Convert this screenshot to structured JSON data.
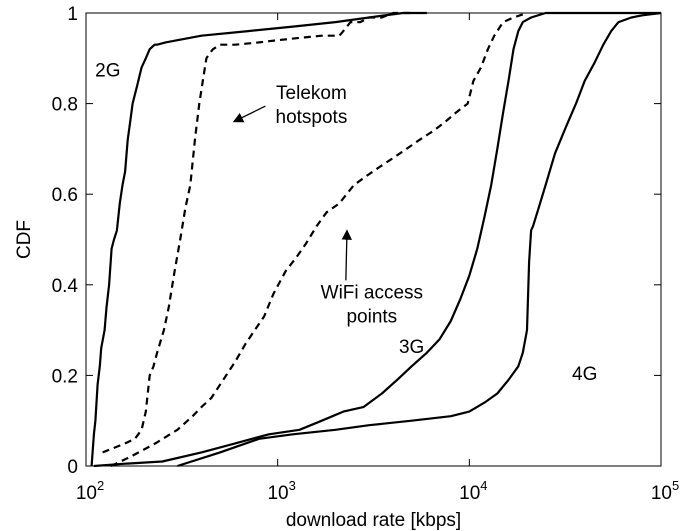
{
  "chart_data": {
    "type": "line",
    "xscale": "log",
    "xlabel": "download rate [kbps]",
    "ylabel": "CDF",
    "xlim": [
      100,
      100000
    ],
    "ylim": [
      0,
      1
    ],
    "x_ticks": [
      {
        "value": 100,
        "base": "10",
        "exp": "2"
      },
      {
        "value": 1000,
        "base": "10",
        "exp": "3"
      },
      {
        "value": 10000,
        "base": "10",
        "exp": "4"
      },
      {
        "value": 100000,
        "base": "10",
        "exp": "5"
      }
    ],
    "y_ticks": [
      {
        "value": 0,
        "label": "0"
      },
      {
        "value": 0.2,
        "label": "0.2"
      },
      {
        "value": 0.4,
        "label": "0.4"
      },
      {
        "value": 0.6,
        "label": "0.6"
      },
      {
        "value": 0.8,
        "label": "0.8"
      },
      {
        "value": 1,
        "label": "1"
      }
    ],
    "grid": false,
    "series": [
      {
        "name": "2G",
        "style": "solid",
        "x": [
          107,
          110,
          112,
          115,
          118,
          120,
          125,
          128,
          132,
          136,
          140,
          145,
          150,
          155,
          160,
          165,
          170,
          175,
          180,
          185,
          190,
          195,
          205,
          215,
          228,
          235,
          260,
          400,
          700,
          1200,
          2000,
          3000,
          4500,
          6000
        ],
        "y": [
          0,
          0.07,
          0.1,
          0.18,
          0.22,
          0.26,
          0.3,
          0.35,
          0.4,
          0.48,
          0.5,
          0.52,
          0.58,
          0.62,
          0.65,
          0.72,
          0.76,
          0.8,
          0.82,
          0.84,
          0.86,
          0.88,
          0.9,
          0.92,
          0.93,
          0.93,
          0.935,
          0.95,
          0.96,
          0.97,
          0.98,
          0.99,
          1,
          1
        ]
      },
      {
        "name": "Telekom hotspots",
        "style": "dashed",
        "x": [
          122,
          140,
          160,
          180,
          195,
          205,
          215,
          225,
          235,
          255,
          270,
          290,
          310,
          330,
          350,
          370,
          390,
          410,
          425,
          440,
          460,
          500,
          600,
          800,
          1000,
          1300,
          1700,
          2100,
          2200,
          2400,
          2700,
          3000,
          3500,
          4000,
          4500,
          5000
        ],
        "y": [
          0.03,
          0.04,
          0.05,
          0.06,
          0.08,
          0.12,
          0.2,
          0.22,
          0.25,
          0.3,
          0.35,
          0.43,
          0.5,
          0.57,
          0.62,
          0.72,
          0.8,
          0.86,
          0.9,
          0.91,
          0.92,
          0.93,
          0.93,
          0.935,
          0.94,
          0.945,
          0.95,
          0.95,
          0.96,
          0.98,
          0.98,
          0.99,
          0.99,
          1,
          1,
          1
        ]
      },
      {
        "name": "WiFi access points",
        "style": "dashed",
        "x": [
          135,
          170,
          230,
          300,
          360,
          400,
          450,
          520,
          600,
          680,
          760,
          850,
          950,
          1100,
          1250,
          1400,
          1600,
          1800,
          2100,
          2500,
          2900,
          3400,
          4000,
          4700,
          5500,
          6500,
          7500,
          8500,
          9800,
          10500,
          11500,
          12500,
          13500,
          15000,
          17000,
          20000
        ],
        "y": [
          0,
          0.02,
          0.05,
          0.08,
          0.11,
          0.13,
          0.15,
          0.19,
          0.23,
          0.27,
          0.3,
          0.33,
          0.38,
          0.43,
          0.46,
          0.49,
          0.53,
          0.56,
          0.58,
          0.62,
          0.64,
          0.66,
          0.68,
          0.7,
          0.72,
          0.74,
          0.76,
          0.78,
          0.8,
          0.85,
          0.88,
          0.92,
          0.95,
          0.98,
          0.99,
          1
        ]
      },
      {
        "name": "3G",
        "style": "solid",
        "x": [
          110,
          160,
          250,
          400,
          600,
          900,
          1300,
          1700,
          2200,
          2800,
          3500,
          4200,
          5000,
          6000,
          7000,
          8000,
          9000,
          10000,
          11000,
          12000,
          13000,
          14000,
          15000,
          16000,
          17000,
          18000,
          19000,
          21000,
          25000,
          40000,
          100000
        ],
        "y": [
          0,
          0.005,
          0.01,
          0.03,
          0.05,
          0.07,
          0.08,
          0.1,
          0.12,
          0.13,
          0.16,
          0.19,
          0.22,
          0.25,
          0.28,
          0.32,
          0.37,
          0.42,
          0.48,
          0.55,
          0.62,
          0.7,
          0.78,
          0.85,
          0.92,
          0.96,
          0.98,
          0.99,
          1,
          1,
          1
        ]
      },
      {
        "name": "4G",
        "style": "solid",
        "x": [
          300,
          500,
          800,
          1200,
          2000,
          3000,
          5000,
          8000,
          10000,
          12000,
          14000,
          16000,
          18000,
          19000,
          20000,
          20500,
          21000,
          21500,
          23000,
          25000,
          28000,
          32000,
          36000,
          40000,
          45000,
          50000,
          55000,
          60000,
          70000,
          80000,
          100000
        ],
        "y": [
          0,
          0.03,
          0.06,
          0.07,
          0.08,
          0.09,
          0.1,
          0.11,
          0.12,
          0.14,
          0.16,
          0.19,
          0.22,
          0.25,
          0.3,
          0.45,
          0.52,
          0.53,
          0.57,
          0.62,
          0.69,
          0.75,
          0.8,
          0.85,
          0.89,
          0.93,
          0.96,
          0.98,
          0.99,
          0.995,
          1
        ]
      }
    ],
    "annotations": [
      {
        "text": "2G",
        "lines": [
          "2G"
        ],
        "x": 130,
        "y": 0.86
      },
      {
        "text": "Telekom hotspots",
        "lines": [
          "Telekom",
          "hotspots"
        ],
        "x": 1500,
        "y": 0.81,
        "arrow_to": {
          "x": 590,
          "y": 0.76
        }
      },
      {
        "text": "WiFi access points",
        "lines": [
          "WiFi access",
          "points"
        ],
        "x": 3100,
        "y": 0.37,
        "arrow_to": {
          "x": 2300,
          "y": 0.52
        }
      },
      {
        "text": "3G",
        "lines": [
          "3G"
        ],
        "x": 5000,
        "y": 0.25
      },
      {
        "text": "4G",
        "lines": [
          "4G"
        ],
        "x": 40000,
        "y": 0.19
      }
    ]
  }
}
